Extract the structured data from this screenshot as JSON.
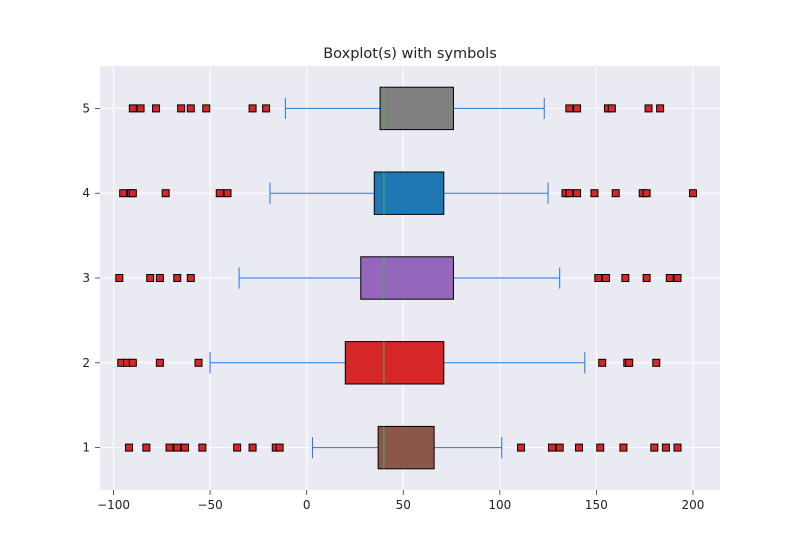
{
  "chart_data": {
    "type": "boxplot",
    "orientation": "horizontal",
    "title": "Boxplot(s) with symbols",
    "xlabel": "",
    "ylabel": "",
    "xlim": [
      -107,
      214
    ],
    "ylim": [
      0.5,
      5.5
    ],
    "x_ticks": [
      -100,
      -50,
      0,
      50,
      100,
      150,
      200
    ],
    "x_tick_labels": [
      "−100",
      "−50",
      "0",
      "50",
      "100",
      "150",
      "200"
    ],
    "y_ticks": [
      1,
      2,
      3,
      4,
      5
    ],
    "y_tick_labels": [
      "1",
      "2",
      "3",
      "4",
      "5"
    ],
    "grid": true,
    "background": "#eaeaf2",
    "whisker_color": "#1f77e4",
    "median_color": "#4caf50",
    "flier_color": "#d62728",
    "boxes": [
      {
        "position": 1,
        "q1": 37,
        "median": 40,
        "q3": 66,
        "whisker_low": 3,
        "whisker_high": 101,
        "color": "#8c564b",
        "fliers": [
          -92,
          -83,
          -71,
          -67,
          -63,
          -54,
          -36,
          -28,
          -16,
          -14,
          111,
          127,
          131,
          141,
          152,
          164,
          180,
          186,
          192
        ]
      },
      {
        "position": 2,
        "q1": 20,
        "median": 40,
        "q3": 71,
        "whisker_low": -50,
        "whisker_high": 144,
        "color": "#d62728",
        "fliers": [
          -96,
          -93,
          -90,
          -76,
          -56,
          153,
          166,
          167,
          181
        ]
      },
      {
        "position": 3,
        "q1": 28,
        "median": 40,
        "q3": 76,
        "whisker_low": -35,
        "whisker_high": 131,
        "color": "#9467bd",
        "fliers": [
          -97,
          -81,
          -76,
          -67,
          -60,
          151,
          155,
          165,
          176,
          188,
          192
        ]
      },
      {
        "position": 4,
        "q1": 35,
        "median": 40,
        "q3": 71,
        "whisker_low": -19,
        "whisker_high": 125,
        "color": "#1f77b4",
        "fliers": [
          -95,
          -91,
          -90,
          -73,
          -45,
          -41,
          134,
          136,
          140,
          149,
          160,
          174,
          176,
          200
        ]
      },
      {
        "position": 5,
        "q1": 38,
        "median": 40,
        "q3": 76,
        "whisker_low": -11,
        "whisker_high": 123,
        "color": "#808080",
        "fliers": [
          -90,
          -86,
          -78,
          -65,
          -60,
          -52,
          -28,
          -21,
          136,
          140,
          156,
          158,
          177,
          183
        ]
      }
    ]
  }
}
